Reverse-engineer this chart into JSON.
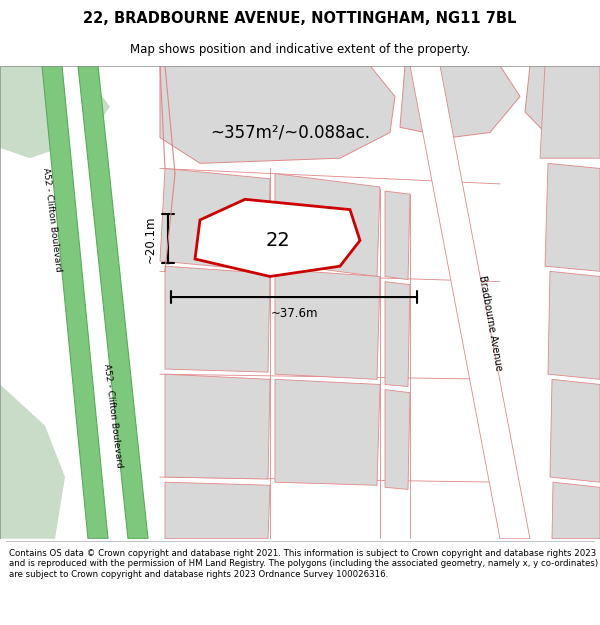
{
  "title": "22, BRADBOURNE AVENUE, NOTTINGHAM, NG11 7BL",
  "subtitle": "Map shows position and indicative extent of the property.",
  "footer": "Contains OS data © Crown copyright and database right 2021. This information is subject to Crown copyright and database rights 2023 and is reproduced with the permission of HM Land Registry. The polygons (including the associated geometry, namely x, y co-ordinates) are subject to Crown copyright and database rights 2023 Ordnance Survey 100026316.",
  "map_bg": "#ffffff",
  "road_green_color": "#7ec87e",
  "road_green_border": "#5aaa5a",
  "grass_color_light": "#c8dcc8",
  "grass_color_mid": "#b8d0b8",
  "building_fill": "#d8d8d8",
  "building_stroke": "#e08888",
  "road_line_color": "#e08888",
  "highlight_stroke": "#cc0000",
  "area_text": "~357m²/~0.088ac.",
  "number_text": "22",
  "dim_width": "~37.6m",
  "dim_height": "~20.1m",
  "road_label_a52": "A52 - Clifton Boulevard",
  "road_label_bradbourne": "Bradbourne Avenue"
}
